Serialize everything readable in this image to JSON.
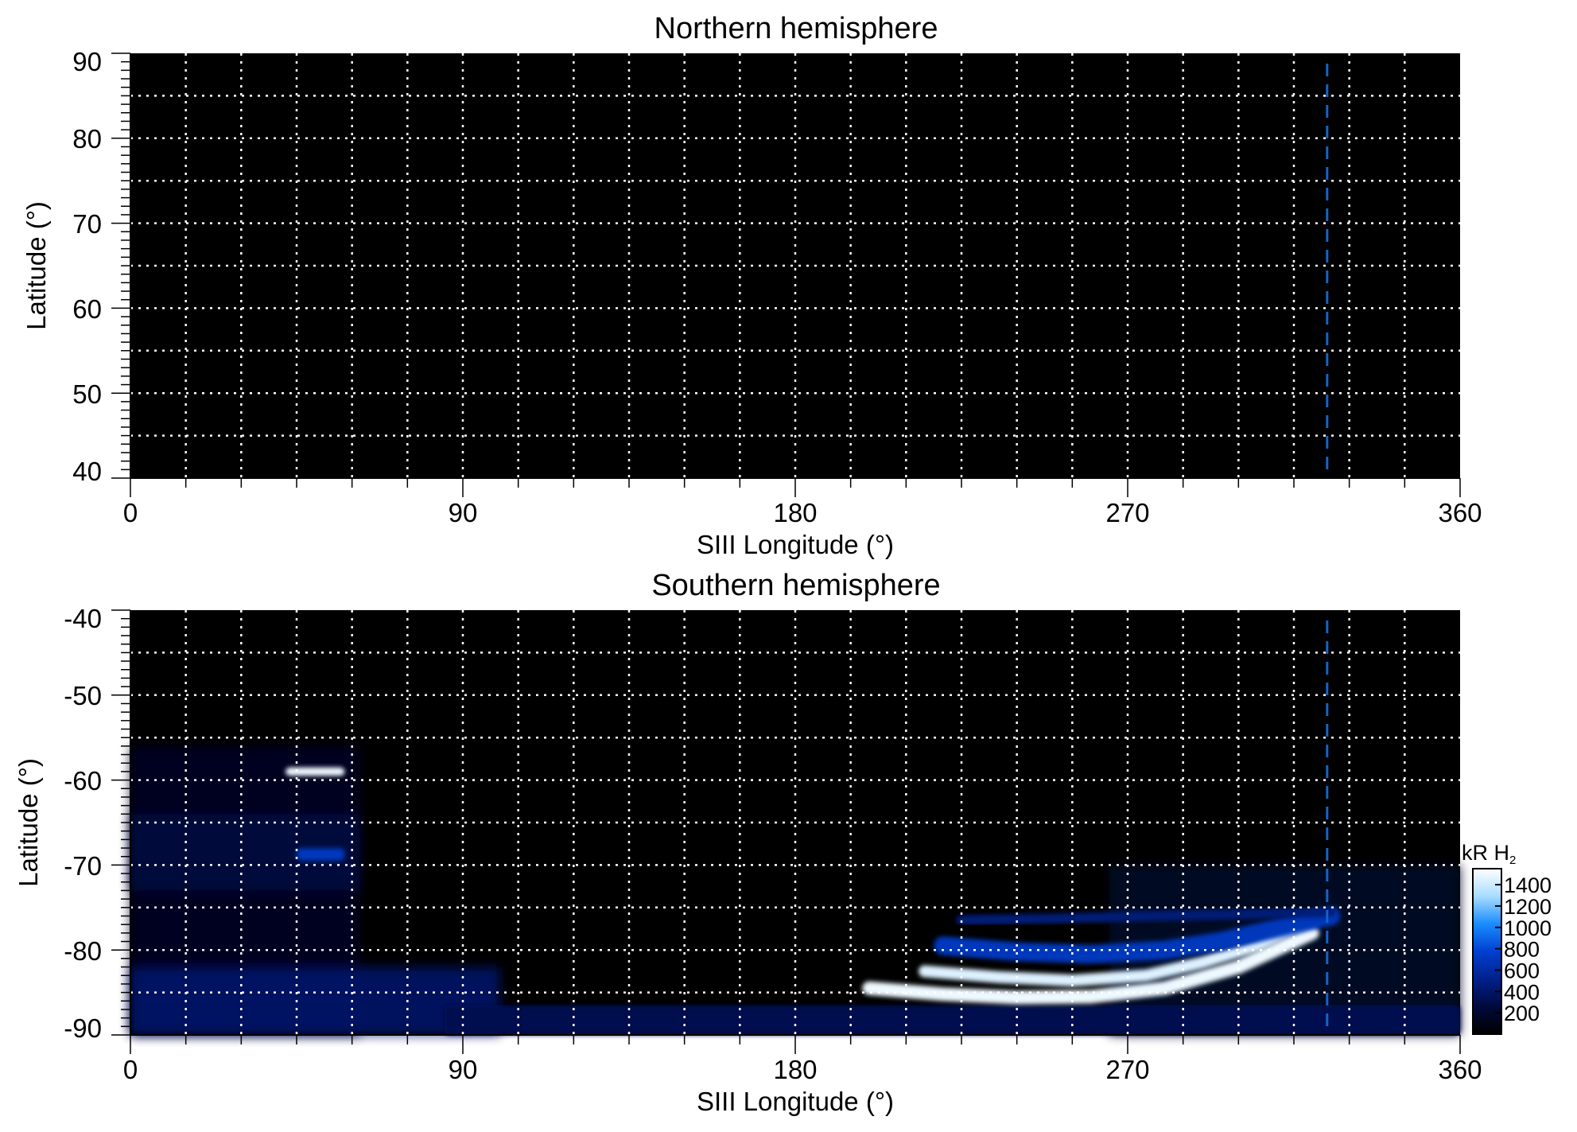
{
  "colorbar": {
    "title_main": "kR H",
    "title_sub": "2",
    "ticks": [
      200,
      400,
      600,
      800,
      1000,
      1200,
      1400
    ],
    "range": [
      0,
      1550
    ],
    "colors": [
      "#000000",
      "#000a3c",
      "#00208c",
      "#0040d0",
      "#1a8cff",
      "#a8dcff",
      "#ffffff"
    ]
  },
  "reference_line": {
    "longitude": 324,
    "color": "#1464c8"
  },
  "chart_data": [
    {
      "type": "heatmap",
      "title": "Northern hemisphere",
      "xlabel": "SIII Longitude (°)",
      "ylabel": "Latitude (°)",
      "xlim": [
        0,
        360
      ],
      "ylim": [
        40,
        90
      ],
      "xticks": [
        0,
        90,
        180,
        270,
        360
      ],
      "yticks": [
        40,
        50,
        60,
        70,
        80,
        90
      ],
      "grid": true,
      "grid_x_step": 15,
      "grid_y_step": 5,
      "features": []
    },
    {
      "type": "heatmap",
      "title": "Southern hemisphere",
      "xlabel": "SIII Longitude (°)",
      "ylabel": "Latitude (°)",
      "xlim": [
        0,
        360
      ],
      "ylim": [
        -90,
        -40
      ],
      "xticks": [
        0,
        90,
        180,
        270,
        360
      ],
      "yticks": [
        -90,
        -80,
        -70,
        -60,
        -50,
        -40
      ],
      "grid": true,
      "grid_x_step": 15,
      "grid_y_step": 5,
      "features": [
        {
          "shape": "region",
          "lon_min": 0,
          "lon_max": 62,
          "lat_min": -90,
          "lat_max": -56,
          "intensity": 160
        },
        {
          "shape": "region",
          "lon_min": 0,
          "lon_max": 62,
          "lat_min": -73,
          "lat_max": -64,
          "intensity": 280
        },
        {
          "shape": "region",
          "lon_min": 0,
          "lon_max": 100,
          "lat_min": -90,
          "lat_max": -82,
          "intensity": 420
        },
        {
          "shape": "region",
          "lon_min": 265,
          "lon_max": 360,
          "lat_min": -90,
          "lat_max": -70,
          "intensity": 180
        },
        {
          "shape": "band",
          "lon_min": 42,
          "lon_max": 58,
          "lat_min": -59.5,
          "lat_max": -58.5,
          "intensity": 1500
        },
        {
          "shape": "band",
          "lon_min": 45,
          "lon_max": 58,
          "lat_min": -69.5,
          "lat_max": -68,
          "intensity": 700
        },
        {
          "shape": "band",
          "lon_min": 85,
          "lon_max": 360,
          "lat_min": -90,
          "lat_max": -86.5,
          "intensity": 320
        },
        {
          "shape": "arc",
          "lon": [
            200,
            220,
            240,
            260,
            280,
            300,
            320
          ],
          "lat": [
            -84.5,
            -85.2,
            -85.6,
            -85.5,
            -84.5,
            -82,
            -78
          ],
          "width": 1.6,
          "intensity": 1500
        },
        {
          "shape": "arc",
          "lon": [
            215,
            235,
            255,
            275,
            290,
            305,
            320
          ],
          "lat": [
            -82.5,
            -83.2,
            -83.6,
            -83,
            -81.5,
            -79.5,
            -76.5
          ],
          "width": 1.4,
          "intensity": 1450
        },
        {
          "shape": "arc",
          "lon": [
            220,
            240,
            260,
            280,
            295,
            310,
            325
          ],
          "lat": [
            -79.5,
            -80.2,
            -80.5,
            -80,
            -79,
            -77.5,
            -76
          ],
          "width": 2.2,
          "intensity": 700
        },
        {
          "shape": "arc",
          "lon": [
            225,
            250,
            275,
            300,
            325
          ],
          "lat": [
            -76.5,
            -76.3,
            -76,
            -75.8,
            -75.5
          ],
          "width": 1.2,
          "intensity": 450
        }
      ]
    }
  ]
}
